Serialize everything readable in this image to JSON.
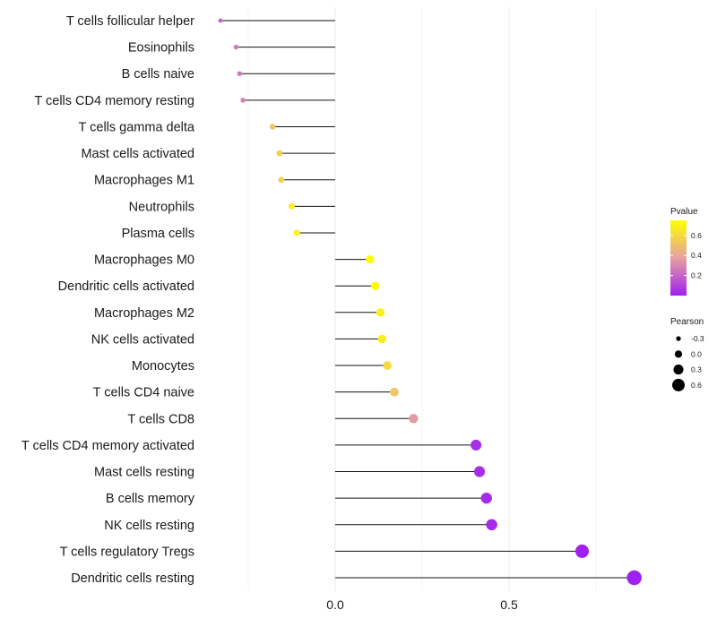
{
  "chart_data": {
    "type": "lollipop",
    "title": "",
    "xlabel": "",
    "ylabel": "",
    "xlim": [
      -0.38,
      0.88
    ],
    "xticks": [
      0.0,
      0.5
    ],
    "xtick_labels": [
      "0.0",
      "0.5"
    ],
    "grid": true,
    "legend_position": "right",
    "categories": [
      "T cells follicular helper",
      "Eosinophils",
      "B cells naive",
      "T cells CD4 memory resting",
      "T cells gamma delta",
      "Mast cells activated",
      "Macrophages M1",
      "Neutrophils",
      "Plasma cells",
      "Macrophages M0",
      "Dendritic cells activated",
      "Macrophages M2",
      "NK cells activated",
      "Monocytes",
      "T cells CD4 naive",
      "T cells CD8",
      "T cells CD4 memory activated",
      "Mast cells resting",
      "B cells memory",
      "NK cells resting",
      "T cells regulatory  Tregs",
      "Dendritic cells resting"
    ],
    "pearson": [
      -0.33,
      -0.285,
      -0.275,
      -0.265,
      -0.18,
      -0.16,
      -0.155,
      -0.125,
      -0.11,
      0.1,
      0.115,
      0.13,
      0.135,
      0.15,
      0.17,
      0.225,
      0.405,
      0.415,
      0.435,
      0.45,
      0.71,
      0.86
    ],
    "pvalue": [
      0.22,
      0.26,
      0.27,
      0.29,
      0.52,
      0.56,
      0.57,
      0.67,
      0.7,
      0.74,
      0.72,
      0.69,
      0.68,
      0.6,
      0.52,
      0.36,
      0.04,
      0.04,
      0.03,
      0.03,
      0.0002,
      1e-05
    ],
    "color_legend": {
      "title": "Pvalue",
      "ticks": [
        0.2,
        0.4,
        0.6
      ],
      "tick_labels": [
        "0.2",
        "0.4",
        "0.6"
      ],
      "range": [
        0.0,
        0.75
      ],
      "low_color": "#A020F0",
      "mid_color": "#E6A0A0",
      "high_color": "#FFFF00"
    },
    "size_legend": {
      "title": "Pearson",
      "values": [
        -0.3,
        0.0,
        0.3,
        0.6
      ],
      "labels": [
        "-0.3",
        "0.0",
        "0.3",
        "0.6"
      ]
    }
  }
}
